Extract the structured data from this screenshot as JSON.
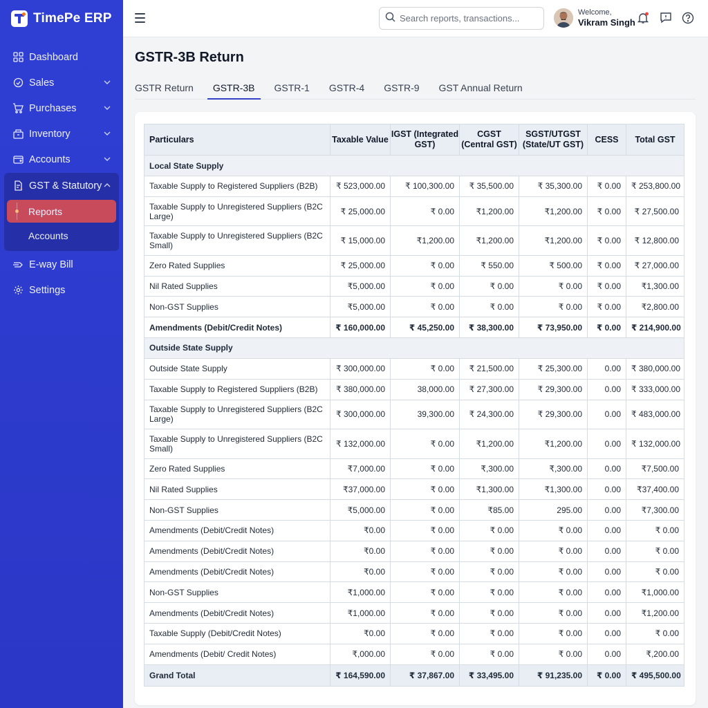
{
  "app": {
    "name": "TimePe ERP"
  },
  "sidebar": {
    "items": [
      {
        "label": "Dashboard",
        "icon": "dashboard-icon"
      },
      {
        "label": "Sales",
        "icon": "sales-icon",
        "chevron": "chevron-down"
      },
      {
        "label": "Purchases",
        "icon": "cart-icon",
        "chevron": "chevron-down"
      },
      {
        "label": "Inventory",
        "icon": "inventory-icon",
        "chevron": "chevron-down"
      },
      {
        "label": "Accounts",
        "icon": "wallet-icon",
        "chevron": "chevron-down"
      }
    ],
    "group": {
      "label": "GST & Statutory",
      "icon": "document-icon",
      "chevron": "chevron-up",
      "children": [
        {
          "label": "Reports",
          "active": true
        },
        {
          "label": "Accounts",
          "active": false
        }
      ]
    },
    "after": [
      {
        "label": "E-way Bill",
        "icon": "truck-icon"
      },
      {
        "label": "Settings",
        "icon": "gear-icon"
      }
    ]
  },
  "header": {
    "search_placeholder": "Search reports, transactions...",
    "welcome": "Welcome,",
    "user_name": "Vikram Singh"
  },
  "page": {
    "title": "GSTR-3B Return",
    "tabs": [
      {
        "label": "GSTR Return",
        "active": false
      },
      {
        "label": "GSTR-3B",
        "active": true
      },
      {
        "label": "GSTR-1",
        "active": false
      },
      {
        "label": "GSTR-4",
        "active": false
      },
      {
        "label": "GSTR-9",
        "active": false
      },
      {
        "label": "GST Annual Return",
        "active": false
      }
    ]
  },
  "table": {
    "columns": [
      "Particulars",
      "Taxable Value",
      "IGST (Integrated GST)",
      "CGST (Central GST)",
      "SGST/UTGST (State/UT GST)",
      "CESS",
      "Total GST"
    ],
    "rows": [
      {
        "type": "section",
        "cells": [
          "Local State Supply"
        ]
      },
      {
        "type": "row",
        "cells": [
          "Taxable Supply to Registered Suppliers (B2B)",
          "₹ 523,000.00",
          "₹ 100,300.00",
          "₹ 35,500.00",
          "₹ 35,300.00",
          "₹ 0.00",
          "₹ 253,800.00"
        ]
      },
      {
        "type": "tall",
        "cells": [
          "Taxable Supply to Unregistered Suppliers (B2C Large)",
          "₹ 25,000.00",
          "₹ 0.00",
          "₹1,200.00",
          "₹1,200.00",
          "₹ 0.00",
          "₹ 27,500.00"
        ]
      },
      {
        "type": "tall",
        "cells": [
          "Taxable Supply to Unregistered Suppliers (B2C Small)",
          "₹ 15,000.00",
          "₹1,200.00",
          "₹1,200.00",
          "₹1,200.00",
          "₹ 0.00",
          "₹ 12,800.00"
        ]
      },
      {
        "type": "row",
        "cells": [
          "Zero Rated Supplies",
          "₹ 25,000.00",
          "₹ 0.00",
          "₹ 550.00",
          "₹ 500.00",
          "₹ 0.00",
          "₹ 27,000.00"
        ]
      },
      {
        "type": "row",
        "cells": [
          "Nil Rated Supplies",
          "₹5,000.00",
          "₹ 0.00",
          "₹ 0.00",
          "₹ 0.00",
          "₹ 0.00",
          "₹1,300.00"
        ]
      },
      {
        "type": "row",
        "cells": [
          "Non-GST Supplies",
          "₹5,000.00",
          "₹ 0.00",
          "₹ 0.00",
          "₹ 0.00",
          "₹ 0.00",
          "₹2,800.00"
        ]
      },
      {
        "type": "bold",
        "cells": [
          "Amendments (Debit/Credit Notes)",
          "₹ 160,000.00",
          "₹ 45,250.00",
          "₹ 38,300.00",
          "₹ 73,950.00",
          "₹ 0.00",
          "₹ 214,900.00"
        ]
      },
      {
        "type": "section",
        "cells": [
          "Outside State Supply"
        ]
      },
      {
        "type": "row",
        "cells": [
          "Outside State Supply",
          "₹ 300,000.00",
          "₹ 0.00",
          "₹ 21,500.00",
          "₹ 25,300.00",
          "0.00",
          "₹ 380,000.00"
        ]
      },
      {
        "type": "row",
        "cells": [
          "Taxable Supply to Registered Suppliers (B2B)",
          "₹ 380,000.00",
          "38,000.00",
          "₹ 27,300.00",
          "₹ 29,300.00",
          "0.00",
          "₹ 333,000.00"
        ]
      },
      {
        "type": "tall",
        "cells": [
          "Taxable Supply to Unregistered Suppliers (B2C Large)",
          "₹ 300,000.00",
          "39,300.00",
          "₹ 24,300.00",
          "₹ 29,300.00",
          "0.00",
          "₹ 483,000.00"
        ]
      },
      {
        "type": "tall",
        "cells": [
          "Taxable Supply to Unregistered Suppliers (B2C Small)",
          "₹ 132,000.00",
          "₹ 0.00",
          "₹1,200.00",
          "₹1,200.00",
          "0.00",
          "₹ 132,000.00"
        ]
      },
      {
        "type": "row",
        "cells": [
          "Zero Rated Supplies",
          "₹7,000.00",
          "₹ 0.00",
          "₹,300.00",
          "₹,300.00",
          "0.00",
          "₹7,500.00"
        ]
      },
      {
        "type": "row",
        "cells": [
          "Nil Rated Supplies",
          "₹37,000.00",
          "₹ 0.00",
          "₹1,300.00",
          "₹1,300.00",
          "0.00",
          "₹37,400.00"
        ]
      },
      {
        "type": "row",
        "cells": [
          "Non-GST Supplies",
          "₹5,000.00",
          "₹ 0.00",
          "₹85.00",
          "295.00",
          "0.00",
          "₹7,300.00"
        ]
      },
      {
        "type": "row",
        "cells": [
          "Amendments (Debit/Credit Notes)",
          "₹0.00",
          "₹ 0.00",
          "₹ 0.00",
          "₹ 0.00",
          "0.00",
          "₹ 0.00"
        ]
      },
      {
        "type": "row",
        "cells": [
          "Amendments (Debit/Credit Notes)",
          "₹0.00",
          "₹ 0.00",
          "₹ 0.00",
          "₹ 0.00",
          "0.00",
          "₹ 0.00"
        ]
      },
      {
        "type": "row",
        "cells": [
          "Amendments (Debit/Credit Notes)",
          "₹0.00",
          "₹ 0.00",
          "₹ 0.00",
          "₹ 0.00",
          "0.00",
          "₹ 0.00"
        ]
      },
      {
        "type": "row",
        "cells": [
          "Non-GST Supplies",
          "₹1,000.00",
          "₹ 0.00",
          "₹ 0.00",
          "₹ 0.00",
          "0.00",
          "₹1,000.00"
        ]
      },
      {
        "type": "row",
        "cells": [
          "Amendments (Debit/Credit Notes)",
          "₹1,000.00",
          "₹ 0.00",
          "₹ 0.00",
          "₹ 0.00",
          "0.00",
          "₹1,200.00"
        ]
      },
      {
        "type": "row",
        "cells": [
          "Taxable Supply (Debit/Credit Notes)",
          "₹0.00",
          "₹ 0.00",
          "₹ 0.00",
          "₹ 0.00",
          "0.00",
          "₹ 0.00"
        ]
      },
      {
        "type": "row",
        "cells": [
          "Amendments (Debit/ Credit Notes)",
          "₹,000.00",
          "₹ 0.00",
          "₹ 0.00",
          "₹ 0.00",
          "0.00",
          "₹,200.00"
        ]
      },
      {
        "type": "total",
        "cells": [
          "Grand Total",
          "₹ 164,590.00",
          "₹ 37,867.00",
          "₹ 33,495.00",
          "₹ 91,235.00",
          "₹ 0.00",
          "₹ 495,500.00"
        ]
      }
    ]
  },
  "colors": {
    "sidebar_bg": "#2f3fd4",
    "active_item": "#c84b5c",
    "tab_underline": "#3341c8",
    "notification_dot": "#ef4444"
  }
}
